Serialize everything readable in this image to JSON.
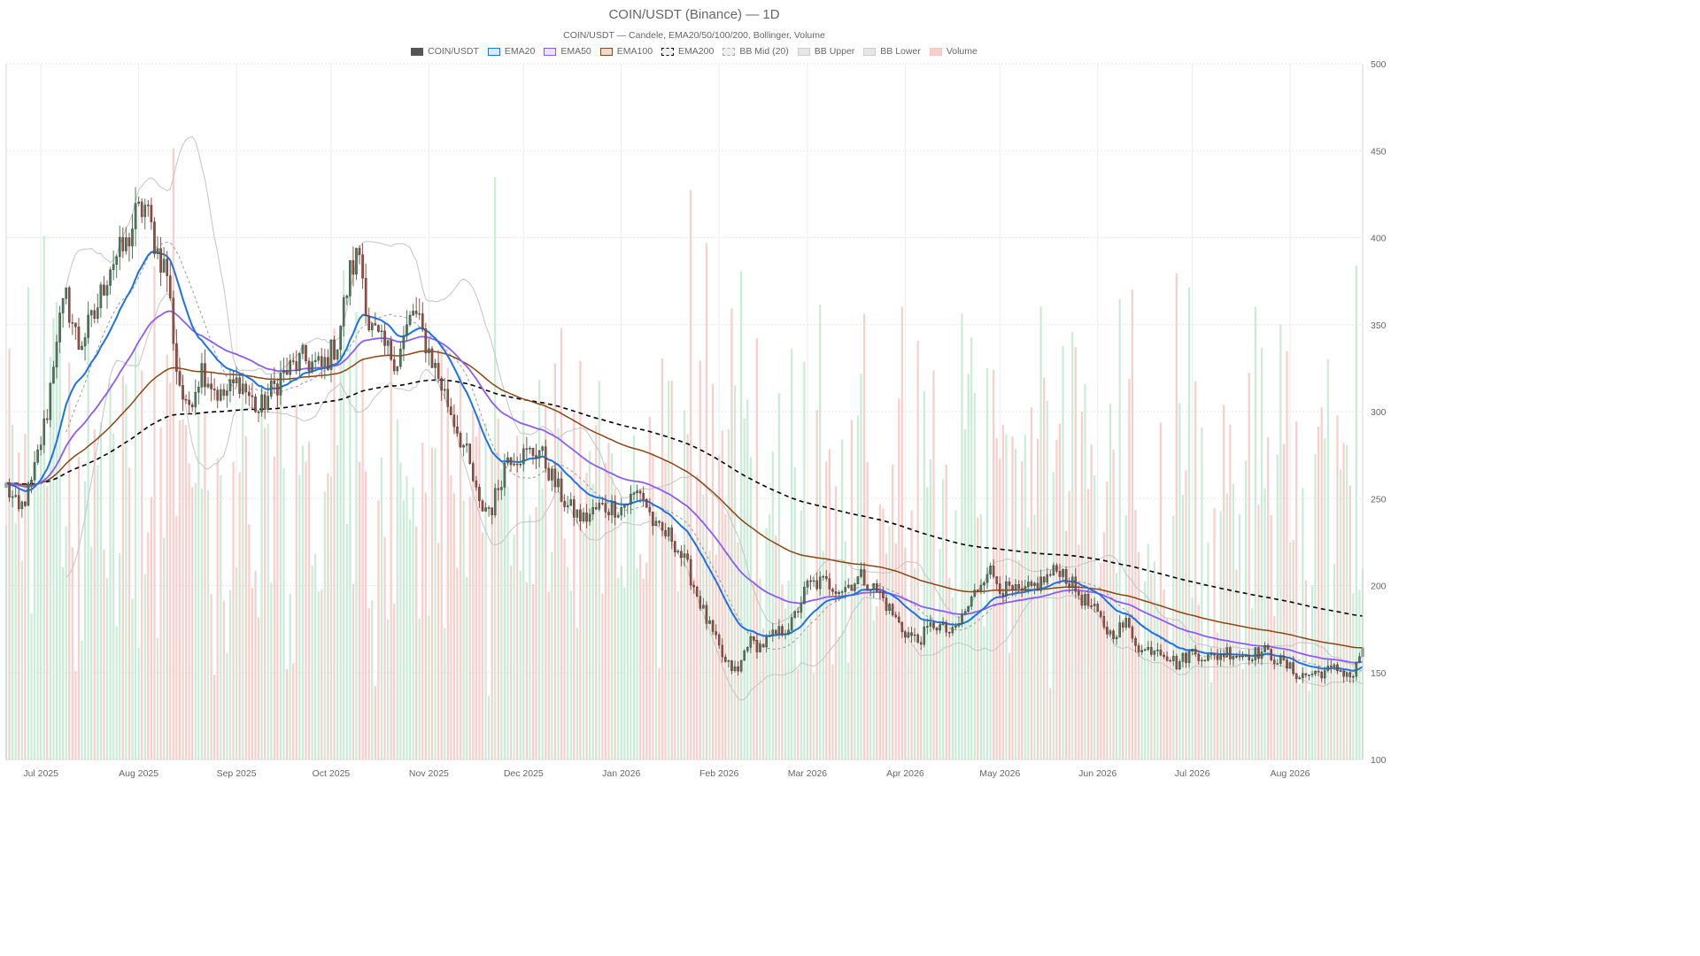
{
  "chart_data": {
    "type": "candlestick",
    "title": "COIN/USDT (Binance) — 1D",
    "subtitle": "COIN/USDT — Candele, EMA20/50/100/200, Bollinger, Volume",
    "legend": [
      {
        "label": "COIN/USDT",
        "color": "#555555",
        "fill": "#555555",
        "dashed": false
      },
      {
        "label": "EMA20",
        "color": "#1a73e8",
        "fill": "#dce9fb",
        "dashed": false
      },
      {
        "label": "EMA50",
        "color": "#8b5cf6",
        "fill": "#ece4fd",
        "dashed": false
      },
      {
        "label": "EMA100",
        "color": "#8b4513",
        "fill": "#ecdcd0",
        "dashed": false
      },
      {
        "label": "EMA200",
        "color": "#000000",
        "fill": "#eeeeee",
        "dashed": true
      },
      {
        "label": "BB Mid (20)",
        "color": "#aaaaaa",
        "fill": "#eeeeee",
        "dashed": true
      },
      {
        "label": "BB Upper",
        "color": "#cccccc",
        "fill": "#e6e6e6",
        "dashed": false
      },
      {
        "label": "BB Lower",
        "color": "#cccccc",
        "fill": "#e6e6e6",
        "dashed": false
      },
      {
        "label": "Volume",
        "color": "#f6c6c0",
        "fill": "#f9cfc9",
        "dashed": false
      }
    ],
    "x_start": "2025-06-20",
    "x_end": "2026-08-24",
    "x_tick_labels": [
      "Jul 2025",
      "Aug 2025",
      "Sep 2025",
      "Oct 2025",
      "Nov 2025",
      "Dec 2025",
      "Jan 2026",
      "Feb 2026",
      "Mar 2026",
      "Apr 2026",
      "May 2026",
      "Jun 2026",
      "Jul 2026",
      "Aug 2026"
    ],
    "x_tick_dates": [
      "2025-07-01",
      "2025-08-01",
      "2025-09-01",
      "2025-10-01",
      "2025-11-01",
      "2025-12-01",
      "2026-01-01",
      "2026-02-01",
      "2026-03-01",
      "2026-04-01",
      "2026-05-01",
      "2026-06-01",
      "2026-07-01",
      "2026-08-01"
    ],
    "y_ticks": [
      100,
      150,
      200,
      250,
      300,
      350,
      400,
      450,
      500
    ],
    "ylim": [
      100,
      500
    ],
    "grid": true,
    "legend_position": "top-center",
    "colors": {
      "up": "#4a7c59",
      "down": "#a0493d",
      "vol_up": "#bfe9cf",
      "vol_down": "#f6c6c0"
    },
    "close_anchors": [
      [
        "2025-06-20",
        257
      ],
      [
        "2025-06-24",
        242
      ],
      [
        "2025-06-28",
        258
      ],
      [
        "2025-07-03",
        300
      ],
      [
        "2025-07-06",
        345
      ],
      [
        "2025-07-09",
        365
      ],
      [
        "2025-07-13",
        338
      ],
      [
        "2025-07-18",
        355
      ],
      [
        "2025-07-23",
        385
      ],
      [
        "2025-07-28",
        395
      ],
      [
        "2025-07-31",
        412
      ],
      [
        "2025-08-03",
        418
      ],
      [
        "2025-08-07",
        392
      ],
      [
        "2025-08-10",
        380
      ],
      [
        "2025-08-13",
        325
      ],
      [
        "2025-08-16",
        300
      ],
      [
        "2025-08-21",
        325
      ],
      [
        "2025-08-27",
        308
      ],
      [
        "2025-09-02",
        318
      ],
      [
        "2025-09-08",
        300
      ],
      [
        "2025-09-15",
        320
      ],
      [
        "2025-09-22",
        330
      ],
      [
        "2025-09-28",
        325
      ],
      [
        "2025-10-03",
        340
      ],
      [
        "2025-10-07",
        380
      ],
      [
        "2025-10-10",
        392
      ],
      [
        "2025-10-13",
        350
      ],
      [
        "2025-10-17",
        338
      ],
      [
        "2025-10-22",
        330
      ],
      [
        "2025-10-27",
        358
      ],
      [
        "2025-10-31",
        340
      ],
      [
        "2025-11-04",
        320
      ],
      [
        "2025-11-08",
        300
      ],
      [
        "2025-11-13",
        275
      ],
      [
        "2025-11-17",
        245
      ],
      [
        "2025-11-21",
        245
      ],
      [
        "2025-11-26",
        275
      ],
      [
        "2025-12-01",
        275
      ],
      [
        "2025-12-06",
        278
      ],
      [
        "2025-12-10",
        262
      ],
      [
        "2025-12-15",
        245
      ],
      [
        "2025-12-20",
        238
      ],
      [
        "2025-12-25",
        245
      ],
      [
        "2026-01-01",
        245
      ],
      [
        "2026-01-07",
        255
      ],
      [
        "2026-01-12",
        232
      ],
      [
        "2026-01-17",
        228
      ],
      [
        "2026-01-22",
        210
      ],
      [
        "2026-01-28",
        180
      ],
      [
        "2026-02-03",
        155
      ],
      [
        "2026-02-07",
        150
      ],
      [
        "2026-02-10",
        168
      ],
      [
        "2026-02-14",
        165
      ],
      [
        "2026-02-19",
        172
      ],
      [
        "2026-02-24",
        178
      ],
      [
        "2026-03-01",
        200
      ],
      [
        "2026-03-06",
        202
      ],
      [
        "2026-03-12",
        198
      ],
      [
        "2026-03-18",
        205
      ],
      [
        "2026-03-24",
        195
      ],
      [
        "2026-03-31",
        175
      ],
      [
        "2026-04-05",
        168
      ],
      [
        "2026-04-10",
        178
      ],
      [
        "2026-04-16",
        172
      ],
      [
        "2026-04-21",
        188
      ],
      [
        "2026-04-27",
        210
      ],
      [
        "2026-05-02",
        198
      ],
      [
        "2026-05-08",
        195
      ],
      [
        "2026-05-14",
        202
      ],
      [
        "2026-05-20",
        210
      ],
      [
        "2026-05-26",
        195
      ],
      [
        "2026-05-31",
        185
      ],
      [
        "2026-06-05",
        172
      ],
      [
        "2026-06-10",
        178
      ],
      [
        "2026-06-15",
        162
      ],
      [
        "2026-06-20",
        165
      ],
      [
        "2026-06-26",
        155
      ],
      [
        "2026-07-01",
        162
      ],
      [
        "2026-07-07",
        158
      ],
      [
        "2026-07-12",
        162
      ],
      [
        "2026-07-17",
        160
      ],
      [
        "2026-07-24",
        162
      ],
      [
        "2026-07-30",
        155
      ],
      [
        "2026-08-04",
        148
      ],
      [
        "2026-08-10",
        150
      ],
      [
        "2026-08-16",
        152
      ],
      [
        "2026-08-21",
        148
      ],
      [
        "2026-08-24",
        165
      ]
    ],
    "volume_max": 474
  }
}
